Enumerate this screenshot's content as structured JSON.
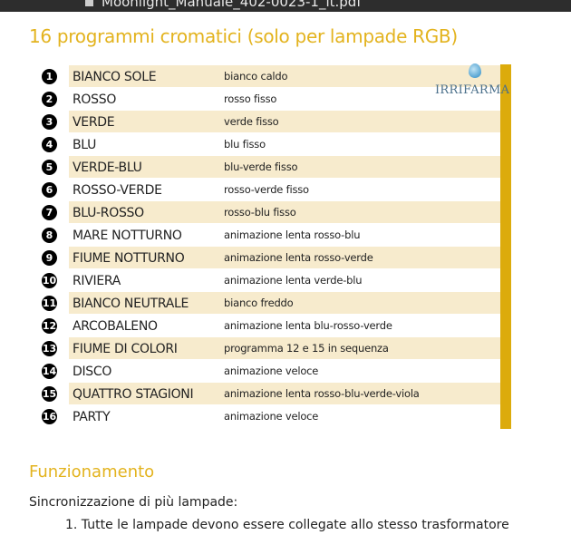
{
  "tab": {
    "filename": "Moonlight_Manuale_402-0023-1_it.pdf",
    "icon": "file-icon"
  },
  "title": "16 programmi cromatici (solo per lampade RGB)",
  "logo": {
    "text": "IRRIFARMA",
    "icon": "water-drop-icon"
  },
  "colors": {
    "accent": "#e3b31e",
    "bar": "#dcab0c",
    "row_shade": "#f7ebcd"
  },
  "programs": [
    {
      "num": "1",
      "name": "BIANCO SOLE",
      "desc": "bianco caldo"
    },
    {
      "num": "2",
      "name": "ROSSO",
      "desc": "rosso fisso"
    },
    {
      "num": "3",
      "name": "VERDE",
      "desc": "verde fisso"
    },
    {
      "num": "4",
      "name": "BLU",
      "desc": "blu fisso"
    },
    {
      "num": "5",
      "name": "VERDE-BLU",
      "desc": "blu-verde fisso"
    },
    {
      "num": "6",
      "name": "ROSSO-VERDE",
      "desc": "rosso-verde fisso"
    },
    {
      "num": "7",
      "name": "BLU-ROSSO",
      "desc": "rosso-blu fisso"
    },
    {
      "num": "8",
      "name": "MARE NOTTURNO",
      "desc": "animazione lenta rosso-blu"
    },
    {
      "num": "9",
      "name": "FIUME NOTTURNO",
      "desc": "animazione lenta rosso-verde"
    },
    {
      "num": "10",
      "name": "RIVIERA",
      "desc": "animazione lenta verde-blu"
    },
    {
      "num": "11",
      "name": "BIANCO NEUTRALE",
      "desc": "bianco freddo"
    },
    {
      "num": "12",
      "name": "ARCOBALENO",
      "desc": "animazione lenta blu-rosso-verde"
    },
    {
      "num": "13",
      "name": "FIUME DI COLORI",
      "desc": "programma 12 e 15 in sequenza"
    },
    {
      "num": "14",
      "name": "DISCO",
      "desc": "animazione veloce"
    },
    {
      "num": "15",
      "name": "QUATTRO STAGIONI",
      "desc": "animazione lenta rosso-blu-verde-viola"
    },
    {
      "num": "16",
      "name": "PARTY",
      "desc": "animazione veloce"
    }
  ],
  "section": {
    "title": "Funzionamento",
    "intro": "Sincronizzazione di più lampade:",
    "items": [
      "1. Tutte le lampade devono essere collegate allo stesso trasformatore"
    ]
  }
}
